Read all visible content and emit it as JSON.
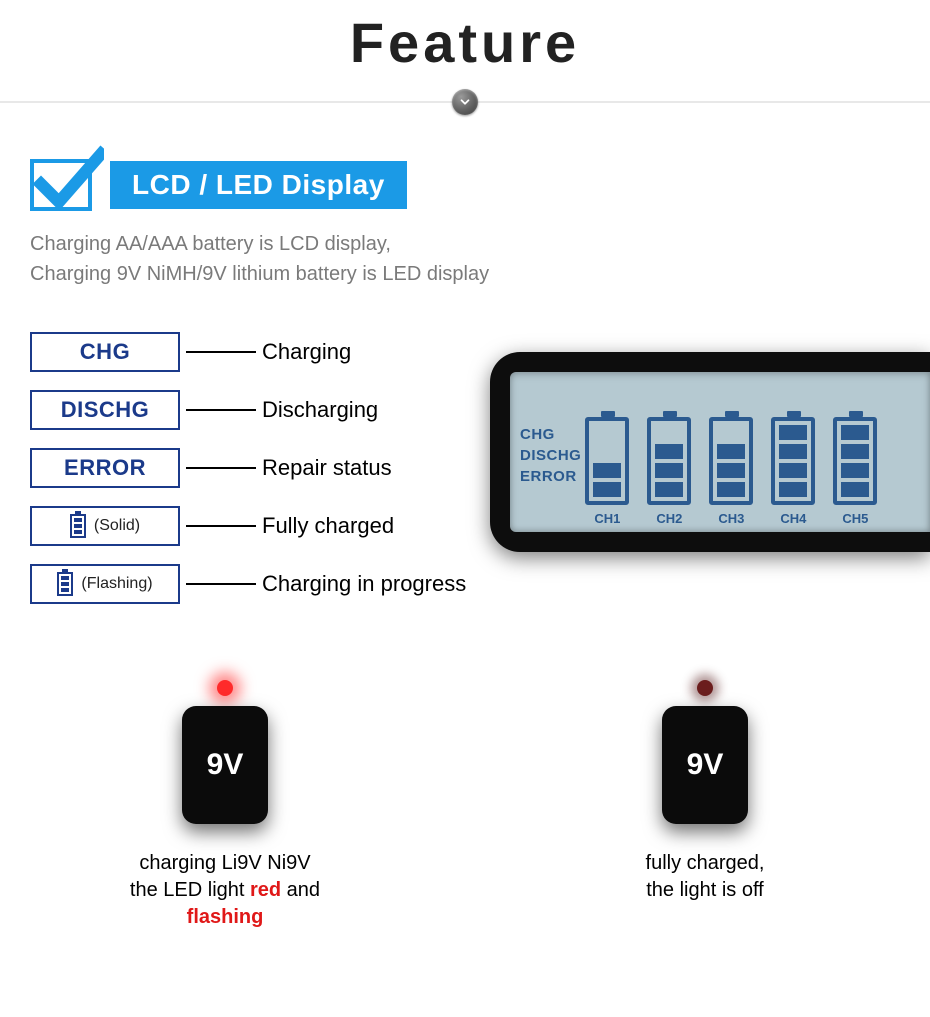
{
  "title": "Feature",
  "badge": {
    "label": "LCD / LED Display"
  },
  "subtitle": {
    "line1": "Charging AA/AAA battery is LCD display,",
    "line2": "Charging 9V NiMH/9V lithium battery is LED display"
  },
  "legend": [
    {
      "box_text": "CHG",
      "box_sub": "",
      "icon": "none",
      "label": "Charging"
    },
    {
      "box_text": "DISCHG",
      "box_sub": "",
      "icon": "none",
      "label": "Discharging"
    },
    {
      "box_text": "ERROR",
      "box_sub": "",
      "icon": "none",
      "label": "Repair status"
    },
    {
      "box_text": "",
      "box_sub": "(Solid)",
      "icon": "battery",
      "label": "Fully charged"
    },
    {
      "box_text": "",
      "box_sub": "(Flashing)",
      "icon": "battery",
      "label": "Charging in progress"
    }
  ],
  "lcd": {
    "legend_lines": [
      "CHG",
      "DISCHG",
      "ERROR"
    ],
    "channels": [
      {
        "label": "CH1",
        "segments": 2,
        "total": 4
      },
      {
        "label": "CH2",
        "segments": 3,
        "total": 4
      },
      {
        "label": "CH3",
        "segments": 3,
        "total": 4
      },
      {
        "label": "CH4",
        "segments": 4,
        "total": 4
      },
      {
        "label": "CH5",
        "segments": 4,
        "total": 4
      }
    ]
  },
  "nine_volt": {
    "block_label": "9V",
    "items": [
      {
        "led": "on",
        "caption_pre": "charging Li9V Ni9V\nthe LED light ",
        "caption_red1": "red",
        "caption_mid": " and ",
        "caption_red2": "flashing"
      },
      {
        "led": "off",
        "caption_pre": "fully charged,\nthe light is off",
        "caption_red1": "",
        "caption_mid": "",
        "caption_red2": ""
      }
    ]
  },
  "colors": {
    "accent_blue": "#1b9ae6",
    "navy": "#1b3a8a",
    "lcd_bg": "#b5c9d1",
    "lcd_fg": "#2b5a8f",
    "gray_text": "#7a7a7a",
    "red": "#e01818"
  }
}
